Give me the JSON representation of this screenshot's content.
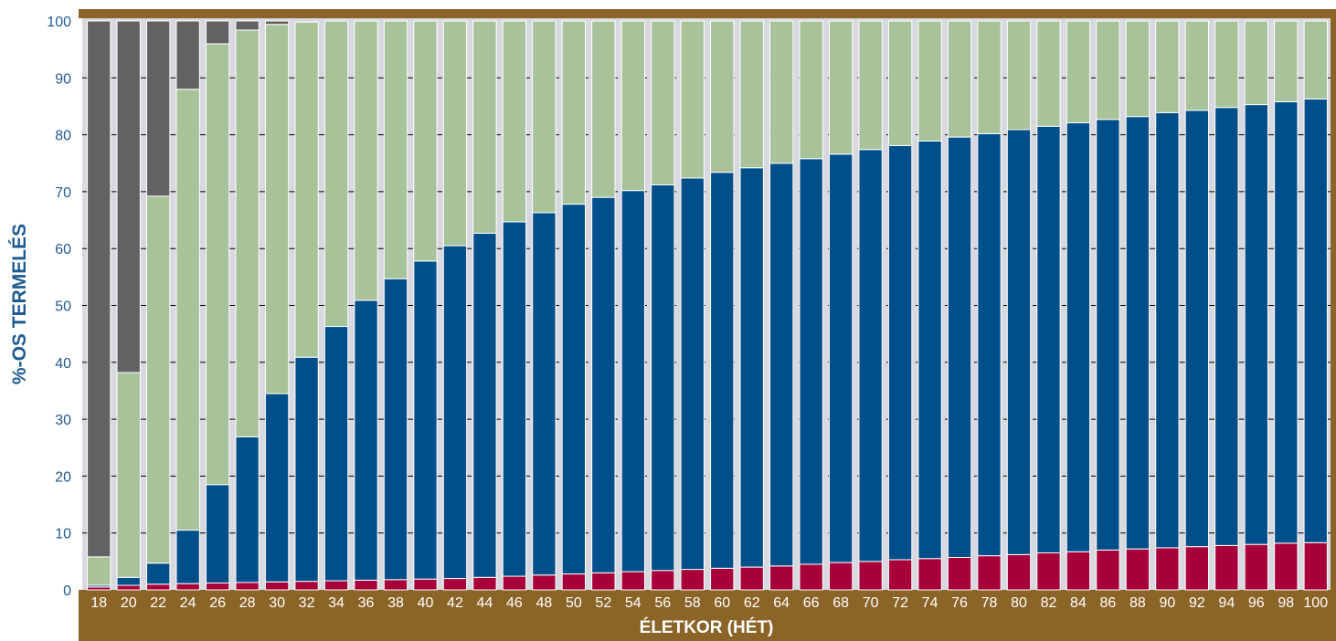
{
  "chart_data": {
    "type": "bar",
    "stacked": true,
    "xlabel": "ÉLETKOR (HÉT)",
    "ylabel": "%-OS TERMELÉS",
    "ylim": [
      0,
      100
    ],
    "yticks": [
      0,
      10,
      20,
      30,
      40,
      50,
      60,
      70,
      80,
      90,
      100
    ],
    "grid": true,
    "categories": [
      "18",
      "20",
      "22",
      "24",
      "26",
      "28",
      "30",
      "32",
      "34",
      "36",
      "38",
      "40",
      "42",
      "44",
      "46",
      "48",
      "50",
      "52",
      "54",
      "56",
      "58",
      "60",
      "62",
      "64",
      "66",
      "68",
      "70",
      "72",
      "74",
      "76",
      "78",
      "80",
      "82",
      "84",
      "86",
      "88",
      "90",
      "92",
      "94",
      "96",
      "98",
      "100"
    ],
    "series": [
      {
        "color": "#a8003a",
        "values": [
          0.5,
          0.8,
          1.0,
          1.1,
          1.2,
          1.3,
          1.4,
          1.5,
          1.6,
          1.7,
          1.8,
          1.9,
          2.0,
          2.2,
          2.4,
          2.6,
          2.8,
          3.0,
          3.2,
          3.4,
          3.6,
          3.8,
          4.0,
          4.2,
          4.5,
          4.8,
          5.0,
          5.3,
          5.5,
          5.7,
          6.0,
          6.2,
          6.5,
          6.7,
          7.0,
          7.2,
          7.4,
          7.6,
          7.8,
          8.0,
          8.2,
          8.3
        ]
      },
      {
        "color": "#004f8a",
        "values": [
          0.3,
          1.4,
          3.7,
          9.4,
          17.3,
          25.6,
          33.1,
          39.4,
          44.7,
          49.2,
          52.9,
          55.9,
          58.5,
          60.5,
          62.3,
          63.7,
          65.0,
          66.0,
          67.0,
          67.8,
          68.8,
          69.6,
          70.2,
          70.8,
          71.3,
          71.8,
          72.4,
          72.8,
          73.4,
          73.9,
          74.2,
          74.7,
          75.0,
          75.4,
          75.7,
          76.0,
          76.5,
          76.7,
          77.0,
          77.3,
          77.6,
          78.0
        ]
      },
      {
        "color": "#a8c29a",
        "values": [
          5.0,
          36.0,
          64.5,
          77.5,
          77.5,
          71.5,
          64.9,
          58.9,
          53.7,
          49.1,
          45.3,
          42.2,
          39.5,
          37.3,
          35.3,
          33.7,
          32.2,
          31.0,
          29.8,
          28.8,
          27.6,
          26.6,
          25.8,
          25.0,
          24.2,
          23.4,
          22.6,
          21.9,
          21.1,
          20.4,
          19.8,
          19.1,
          18.5,
          17.9,
          17.3,
          16.8,
          16.1,
          15.7,
          15.2,
          14.7,
          14.2,
          13.7
        ]
      },
      {
        "color": "#626264",
        "values": [
          94.2,
          61.8,
          30.8,
          12.0,
          4.0,
          1.6,
          0.6,
          0,
          0,
          0,
          0,
          0,
          0,
          0,
          0,
          0,
          0,
          0,
          0,
          0,
          0,
          0,
          0,
          0,
          0,
          0,
          0,
          0,
          0,
          0,
          0,
          0,
          0,
          0,
          0,
          0,
          0,
          0,
          0,
          0,
          0,
          0
        ]
      }
    ]
  },
  "colors": {
    "frame": "#8b6428",
    "plot_background": "#d8d8e0",
    "tick_text": "#1f5a93",
    "axis_band_text": "#ffffff"
  }
}
